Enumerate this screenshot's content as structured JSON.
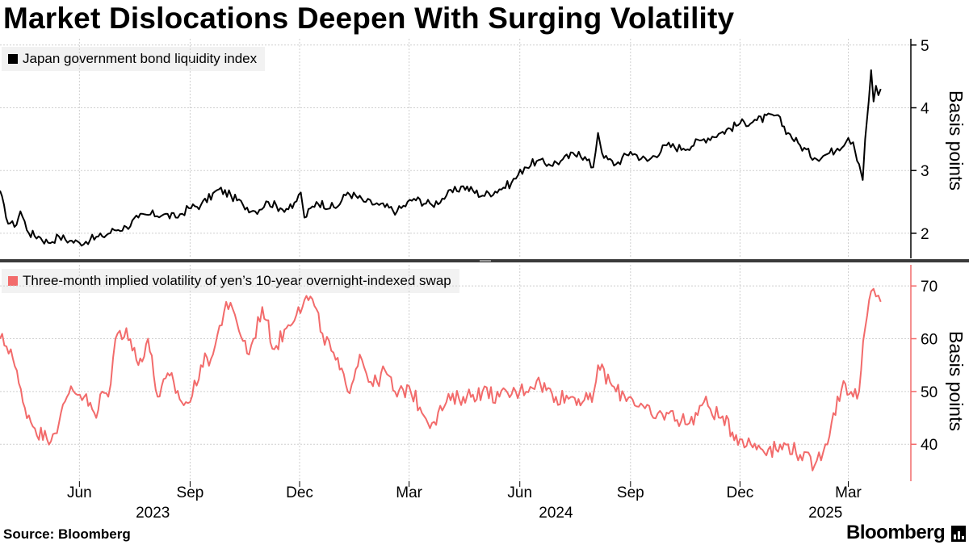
{
  "title": "Market Dislocations Deepen With Surging Volatility",
  "source": "Source: Bloomberg",
  "brand": "Bloomberg",
  "chart_data": [
    {
      "type": "line",
      "legend": "Japan government bond liquidity index",
      "ylabel": "Basis points",
      "ylim": [
        1.6,
        5.1
      ],
      "yticks": [
        2,
        3,
        4,
        5
      ],
      "color": "#000000",
      "grid": true,
      "series": [
        {
          "name": "Japan government bond liquidity index",
          "x": [
            "2023-03-27",
            "2023-04-01",
            "2023-04-08",
            "2023-04-13",
            "2023-04-20",
            "2023-04-28",
            "2023-05-06",
            "2023-05-15",
            "2023-05-24",
            "2023-06-01",
            "2023-06-10",
            "2023-06-20",
            "2023-06-30",
            "2023-07-10",
            "2023-07-20",
            "2023-07-30",
            "2023-08-10",
            "2023-08-20",
            "2023-08-31",
            "2023-09-10",
            "2023-09-25",
            "2023-10-05",
            "2023-10-15",
            "2023-10-25",
            "2023-11-05",
            "2023-11-15",
            "2023-11-25",
            "2023-12-02",
            "2023-12-05",
            "2023-12-15",
            "2023-12-31",
            "2024-01-10",
            "2024-01-25",
            "2024-02-05",
            "2024-02-20",
            "2024-03-05",
            "2024-03-20",
            "2024-04-01",
            "2024-04-15",
            "2024-05-01",
            "2024-05-15",
            "2024-05-25",
            "2024-06-05",
            "2024-06-15",
            "2024-06-25",
            "2024-07-05",
            "2024-07-20",
            "2024-08-01",
            "2024-08-05",
            "2024-08-10",
            "2024-08-20",
            "2024-09-01",
            "2024-09-15",
            "2024-10-01",
            "2024-10-15",
            "2024-11-01",
            "2024-11-15",
            "2024-12-01",
            "2024-12-15",
            "2024-12-31",
            "2025-01-10",
            "2025-01-20",
            "2025-02-01",
            "2025-02-10",
            "2025-02-20",
            "2025-03-01",
            "2025-03-05",
            "2025-03-10",
            "2025-03-13",
            "2025-03-15",
            "2025-03-18",
            "2025-03-20",
            "2025-03-22",
            "2025-03-24",
            "2025-03-26",
            "2025-03-28"
          ],
          "values": [
            2.68,
            2.25,
            2.1,
            2.35,
            2.0,
            1.95,
            1.85,
            1.95,
            1.88,
            1.85,
            1.9,
            1.95,
            2.05,
            2.1,
            2.25,
            2.3,
            2.3,
            2.25,
            2.4,
            2.45,
            2.7,
            2.6,
            2.45,
            2.35,
            2.5,
            2.4,
            2.4,
            2.65,
            2.25,
            2.5,
            2.4,
            2.65,
            2.5,
            2.45,
            2.35,
            2.55,
            2.45,
            2.6,
            2.75,
            2.6,
            2.7,
            2.8,
            3.05,
            3.15,
            3.1,
            3.15,
            3.3,
            3.05,
            3.6,
            3.2,
            3.1,
            3.3,
            3.15,
            3.4,
            3.35,
            3.5,
            3.6,
            3.75,
            3.8,
            3.88,
            3.6,
            3.4,
            3.2,
            3.25,
            3.35,
            3.52,
            3.45,
            3.1,
            2.85,
            3.5,
            4.1,
            4.6,
            4.1,
            4.35,
            4.2,
            4.3
          ]
        }
      ]
    },
    {
      "type": "line",
      "legend": "Three-month implied volatility of yen’s 10-year overnight-indexed swap",
      "ylabel": "Basis points",
      "ylim": [
        33,
        74
      ],
      "yticks": [
        40,
        50,
        60,
        70
      ],
      "color": "#f26b6b",
      "grid": true,
      "series": [
        {
          "name": "Three-month implied volatility of yen’s 10-year overnight-indexed swap",
          "x": [
            "2023-03-27",
            "2023-04-05",
            "2023-04-15",
            "2023-04-25",
            "2023-05-05",
            "2023-05-15",
            "2023-05-25",
            "2023-06-05",
            "2023-06-15",
            "2023-06-20",
            "2023-06-25",
            "2023-07-01",
            "2023-07-10",
            "2023-07-20",
            "2023-07-28",
            "2023-08-05",
            "2023-08-15",
            "2023-08-25",
            "2023-09-01",
            "2023-09-10",
            "2023-09-20",
            "2023-10-01",
            "2023-10-10",
            "2023-10-20",
            "2023-10-31",
            "2023-11-10",
            "2023-11-20",
            "2023-11-30",
            "2023-12-10",
            "2023-12-20",
            "2023-12-31",
            "2024-01-10",
            "2024-01-20",
            "2024-01-31",
            "2024-02-10",
            "2024-02-20",
            "2024-03-01",
            "2024-03-10",
            "2024-03-20",
            "2024-04-01",
            "2024-04-15",
            "2024-05-01",
            "2024-05-15",
            "2024-06-01",
            "2024-06-15",
            "2024-07-01",
            "2024-07-15",
            "2024-07-31",
            "2024-08-05",
            "2024-08-20",
            "2024-09-01",
            "2024-09-20",
            "2024-10-01",
            "2024-10-20",
            "2024-11-01",
            "2024-11-15",
            "2024-12-01",
            "2024-12-10",
            "2024-12-31",
            "2025-01-10",
            "2025-01-20",
            "2025-02-01",
            "2025-02-10",
            "2025-02-15",
            "2025-02-25",
            "2025-03-05",
            "2025-03-10",
            "2025-03-15",
            "2025-03-20",
            "2025-03-24",
            "2025-03-28"
          ],
          "values": [
            60,
            58,
            48,
            43,
            41,
            44,
            51,
            49,
            45,
            50,
            49,
            60,
            62,
            55,
            60,
            49,
            53,
            48,
            48,
            55,
            57,
            67,
            63,
            57,
            66,
            58,
            62,
            66,
            68,
            61,
            56,
            50,
            57,
            51,
            54,
            49,
            51,
            47,
            44,
            48,
            49,
            50,
            49,
            50,
            52,
            49,
            49,
            48,
            55,
            50,
            49,
            45,
            46,
            44,
            48,
            45,
            41,
            40,
            39,
            40,
            38,
            36,
            40,
            44,
            52,
            49,
            50,
            62,
            69,
            68,
            67
          ]
        }
      ]
    }
  ],
  "x_axis": {
    "months": [
      {
        "label": "Jun",
        "date": "2023-06-01"
      },
      {
        "label": "Sep",
        "date": "2023-09-01"
      },
      {
        "label": "Dec",
        "date": "2023-12-01"
      },
      {
        "label": "Mar",
        "date": "2024-03-01"
      },
      {
        "label": "Jun",
        "date": "2024-06-01"
      },
      {
        "label": "Sep",
        "date": "2024-09-01"
      },
      {
        "label": "Dec",
        "date": "2024-12-01"
      },
      {
        "label": "Mar",
        "date": "2025-03-01"
      }
    ],
    "years": [
      {
        "label": "2023",
        "date": "2023-08-01"
      },
      {
        "label": "2024",
        "date": "2024-07-01"
      },
      {
        "label": "2025",
        "date": "2025-02-10"
      }
    ],
    "range": [
      "2023-03-27",
      "2025-04-22"
    ]
  }
}
